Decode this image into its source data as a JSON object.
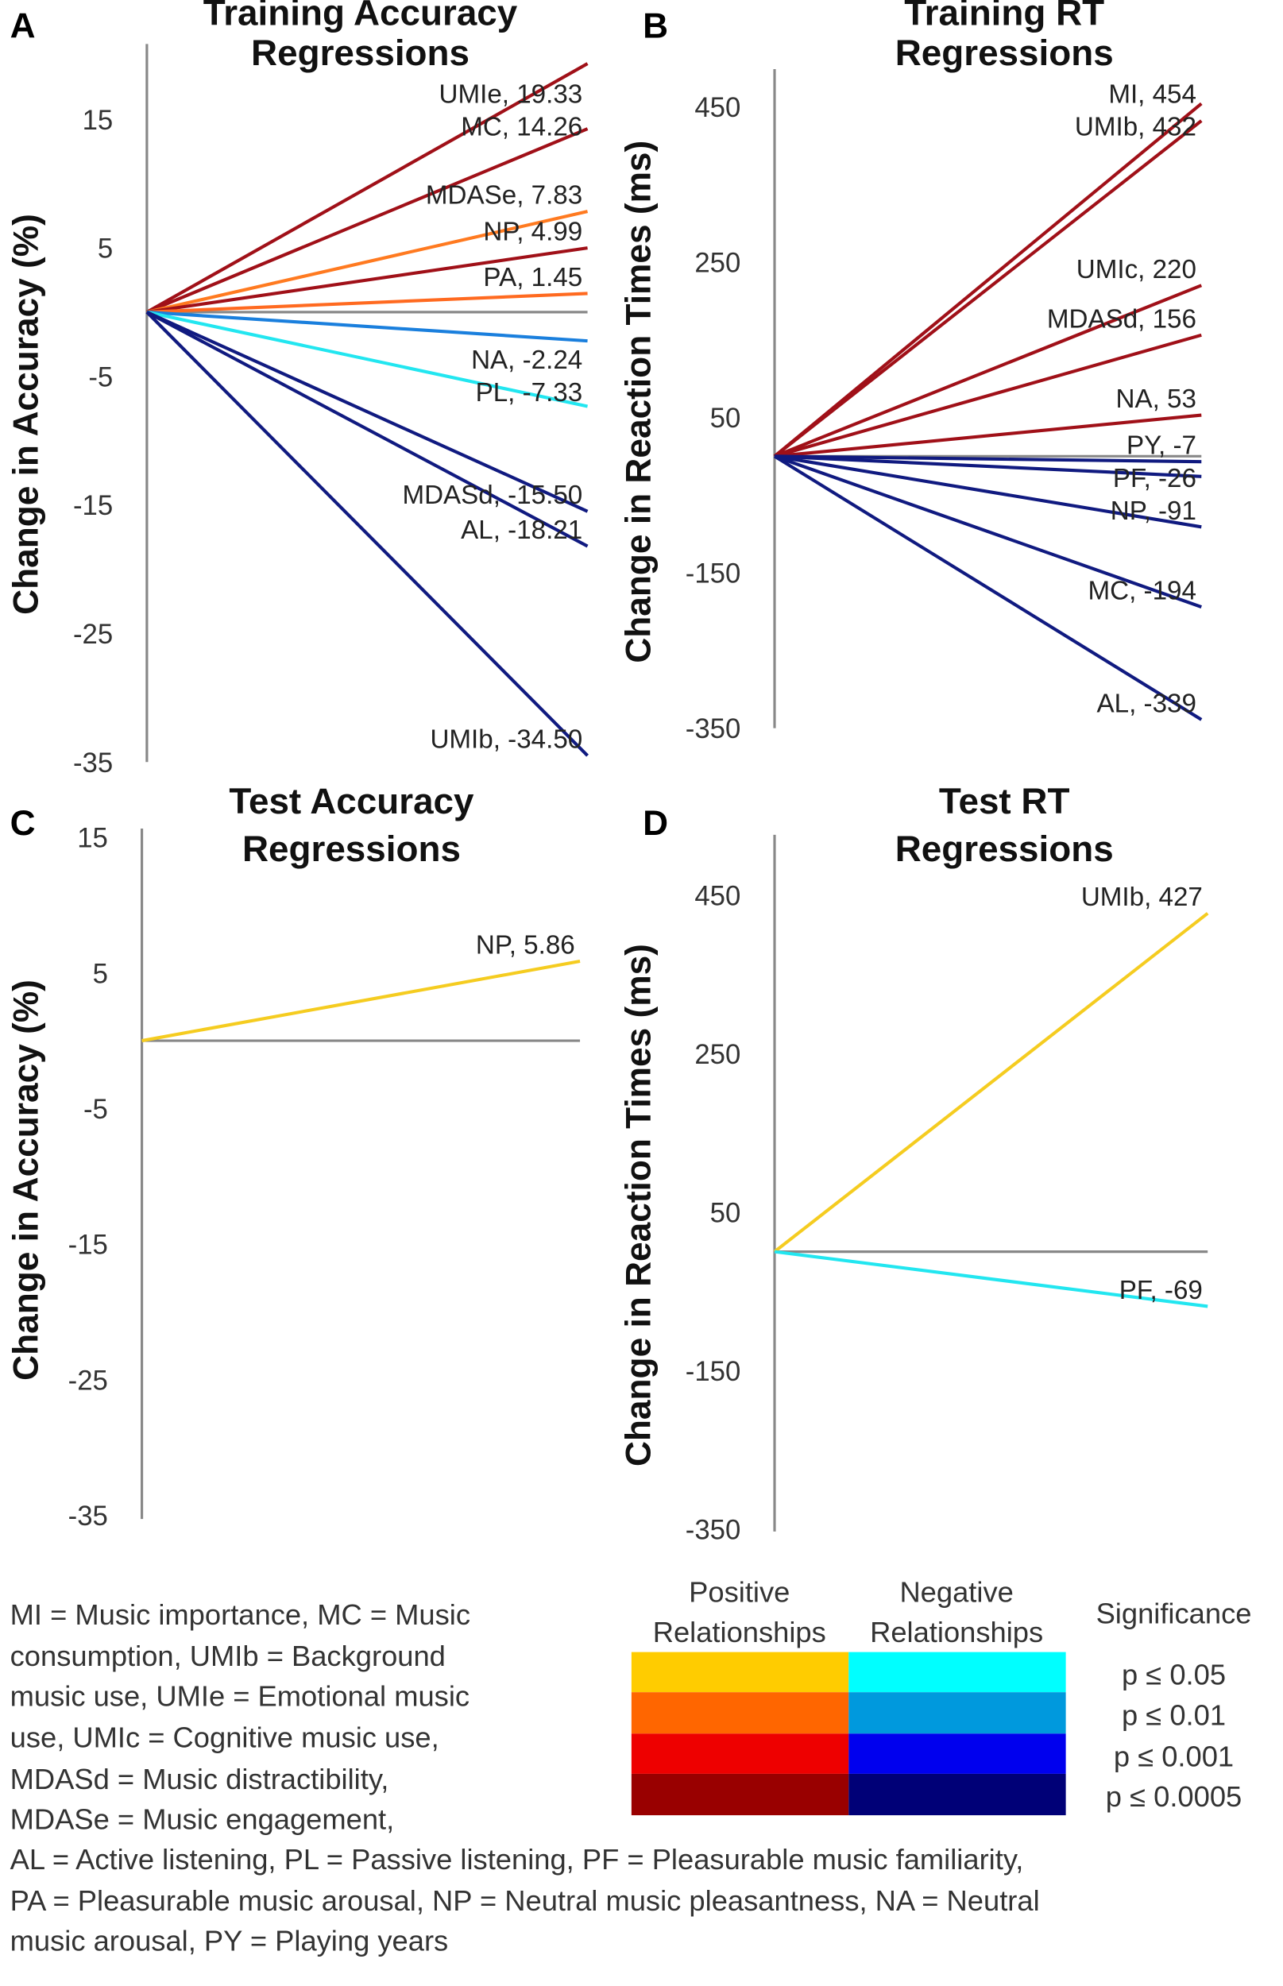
{
  "colors": {
    "pos_005": "#FFCC00",
    "pos_001": "#FF6600",
    "pos_0001": "#EE0000",
    "pos_00005": "#990000",
    "neg_005": "#00FFFF",
    "neg_001": "#0099DD",
    "neg_0001": "#0000EE",
    "neg_00005": "#000077",
    "axis": "#888888"
  },
  "chart_data": [
    {
      "type": "line",
      "panel": "A",
      "title": [
        "Training Accuracy",
        "Regressions"
      ],
      "ylabel": "Change in Accuracy (%)",
      "yticks": [
        15,
        5,
        -5,
        -15,
        -25,
        -35
      ],
      "ylim": [
        -35,
        15
      ],
      "series": [
        {
          "name": "UMIe",
          "label": "UMIe, 19.33",
          "value": 19.33,
          "color": "#a01018"
        },
        {
          "name": "MC",
          "label": "MC, 14.26",
          "value": 14.26,
          "color": "#a01018"
        },
        {
          "name": "MDASe",
          "label": "MDASe, 7.83",
          "value": 7.83,
          "color": "#FF7a20"
        },
        {
          "name": "NP",
          "label": "NP, 4.99",
          "value": 4.99,
          "color": "#a01018"
        },
        {
          "name": "PA",
          "label": "PA, 1.45",
          "value": 1.45,
          "color": "#FF6a20"
        },
        {
          "name": "NA",
          "label": "NA, -2.24",
          "value": -2.24,
          "color": "#1a7fdd",
          "below": true
        },
        {
          "name": "PL",
          "label": "PL, -7.33",
          "value": -7.33,
          "color": "#22e6f0"
        },
        {
          "name": "MDASd",
          "label": "MDASd, -15.50",
          "value": -15.5,
          "color": "#101a80"
        },
        {
          "name": "AL",
          "label": "AL, -18.21",
          "value": -18.21,
          "color": "#101a80"
        },
        {
          "name": "UMIb",
          "label": "UMIb, -34.50",
          "value": -34.5,
          "color": "#101a80"
        }
      ]
    },
    {
      "type": "line",
      "panel": "B",
      "title": [
        "Training RT",
        "Regressions"
      ],
      "ylabel": "Change in Reaction Times (ms)",
      "yticks": [
        450,
        250,
        50,
        -150,
        -350
      ],
      "ylim": [
        -350,
        450
      ],
      "series": [
        {
          "name": "MI",
          "label": "MI, 454",
          "value": 454,
          "color": "#a01018"
        },
        {
          "name": "UMIb",
          "label": "UMIb, 432",
          "value": 432,
          "color": "#a01018"
        },
        {
          "name": "UMIc",
          "label": "UMIc, 220",
          "value": 220,
          "color": "#a01018"
        },
        {
          "name": "MDASd",
          "label": "MDASd, 156",
          "value": 156,
          "color": "#a01018"
        },
        {
          "name": "NA",
          "label": "NA, 53",
          "value": 53,
          "color": "#a01018"
        },
        {
          "name": "PY",
          "label": "PY, -7",
          "value": -7,
          "color": "#101a80"
        },
        {
          "name": "PF",
          "label": "PF, -26",
          "value": -26,
          "color": "#101a80"
        },
        {
          "name": "NP",
          "label": "NP, -91",
          "value": -91,
          "color": "#101a80"
        },
        {
          "name": "MC",
          "label": "MC, -194",
          "value": -194,
          "color": "#101a80"
        },
        {
          "name": "AL",
          "label": "AL, -339",
          "value": -339,
          "color": "#101a80"
        }
      ]
    },
    {
      "type": "line",
      "panel": "C",
      "title": [
        "Test Accuracy",
        "Regressions"
      ],
      "ylabel": "Change in Accuracy (%)",
      "yticks": [
        15,
        5,
        -5,
        -15,
        -25,
        -35
      ],
      "ylim": [
        -35,
        15
      ],
      "series": [
        {
          "name": "NP",
          "label": "NP, 5.86",
          "value": 5.86,
          "color": "#F5CC20"
        }
      ]
    },
    {
      "type": "line",
      "panel": "D",
      "title": [
        "Test RT",
        "Regressions"
      ],
      "ylabel": "Change in Reaction Times (ms)",
      "yticks": [
        450,
        250,
        50,
        -150,
        -350
      ],
      "ylim": [
        -350,
        450
      ],
      "series": [
        {
          "name": "UMIb",
          "label": "UMIb, 427",
          "value": 427,
          "color": "#F5CC20"
        },
        {
          "name": "PF",
          "label": "PF, -69",
          "value": -69,
          "color": "#22e6f0"
        }
      ]
    }
  ],
  "legend": {
    "positive": [
      "Positive",
      "Relationships"
    ],
    "negative": [
      "Negative",
      "Relationships"
    ],
    "significance": "Significance",
    "levels": [
      "p ≤ 0.05",
      "p ≤ 0.01",
      "p ≤ 0.001",
      "p ≤ 0.0005"
    ]
  },
  "abbreviations": [
    "MI = Music importance, MC = Music",
    "consumption, UMIb = Background",
    "music use, UMIe = Emotional music",
    "use, UMIc = Cognitive music use,",
    "MDASd = Music distractibility,",
    "MDASe = Music engagement,",
    "AL = Active listening, PL = Passive listening, PF = Pleasurable music familiarity,",
    "PA = Pleasurable music arousal, NP = Neutral music pleasantness, NA = Neutral",
    "music arousal, PY = Playing years"
  ]
}
